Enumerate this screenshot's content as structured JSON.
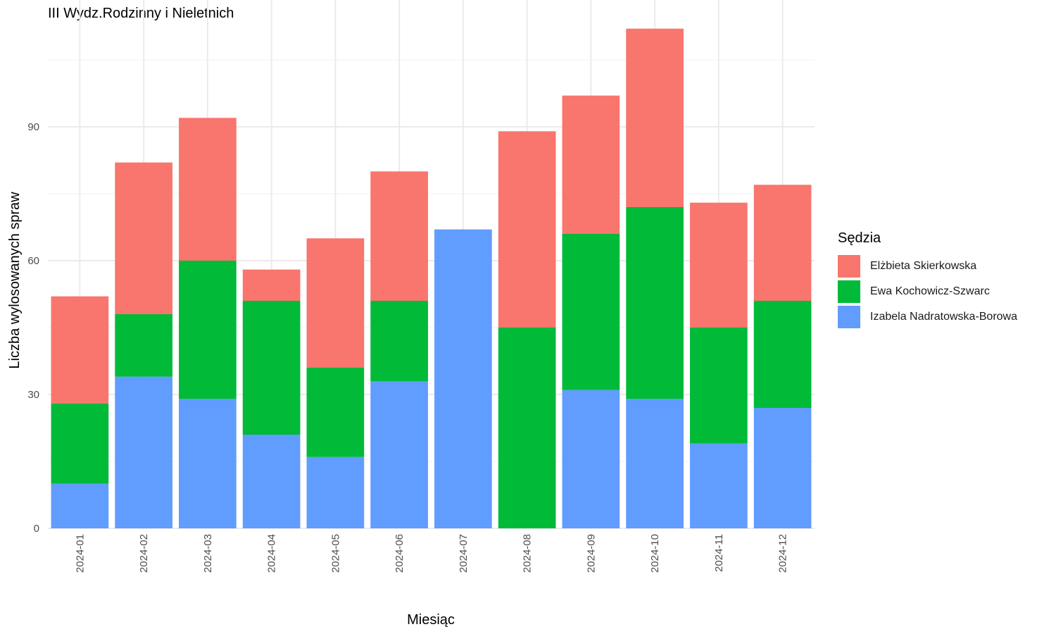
{
  "chart_data": {
    "type": "bar",
    "stacked": true,
    "title": "III Wydz.Rodzinny i Nieletnich",
    "xlabel": "Miesiąc",
    "ylabel": "Liczba wylosowanych spraw",
    "ylim": [
      0,
      115
    ],
    "yticks": [
      0,
      30,
      60,
      90
    ],
    "grid": true,
    "legend_title": "Sędzia",
    "legend_position": "right",
    "categories": [
      "2024-01",
      "2024-02",
      "2024-03",
      "2024-04",
      "2024-05",
      "2024-06",
      "2024-07",
      "2024-08",
      "2024-09",
      "2024-10",
      "2024-11",
      "2024-12"
    ],
    "series": [
      {
        "name": "Izabela Nadratowska-Borowa",
        "color": "#619CFF",
        "values": [
          10,
          34,
          29,
          21,
          16,
          33,
          67,
          0,
          31,
          29,
          19,
          27
        ]
      },
      {
        "name": "Ewa Kochowicz-Szwarc",
        "color": "#00BA38",
        "values": [
          18,
          14,
          31,
          30,
          20,
          18,
          0,
          45,
          35,
          43,
          26,
          24
        ]
      },
      {
        "name": "Elżbieta Skierkowska",
        "color": "#F8766D",
        "values": [
          24,
          34,
          32,
          7,
          29,
          29,
          0,
          44,
          31,
          40,
          28,
          26
        ]
      }
    ],
    "legend_order": [
      "Elżbieta Skierkowska",
      "Ewa Kochowicz-Szwarc",
      "Izabela Nadratowska-Borowa"
    ]
  }
}
